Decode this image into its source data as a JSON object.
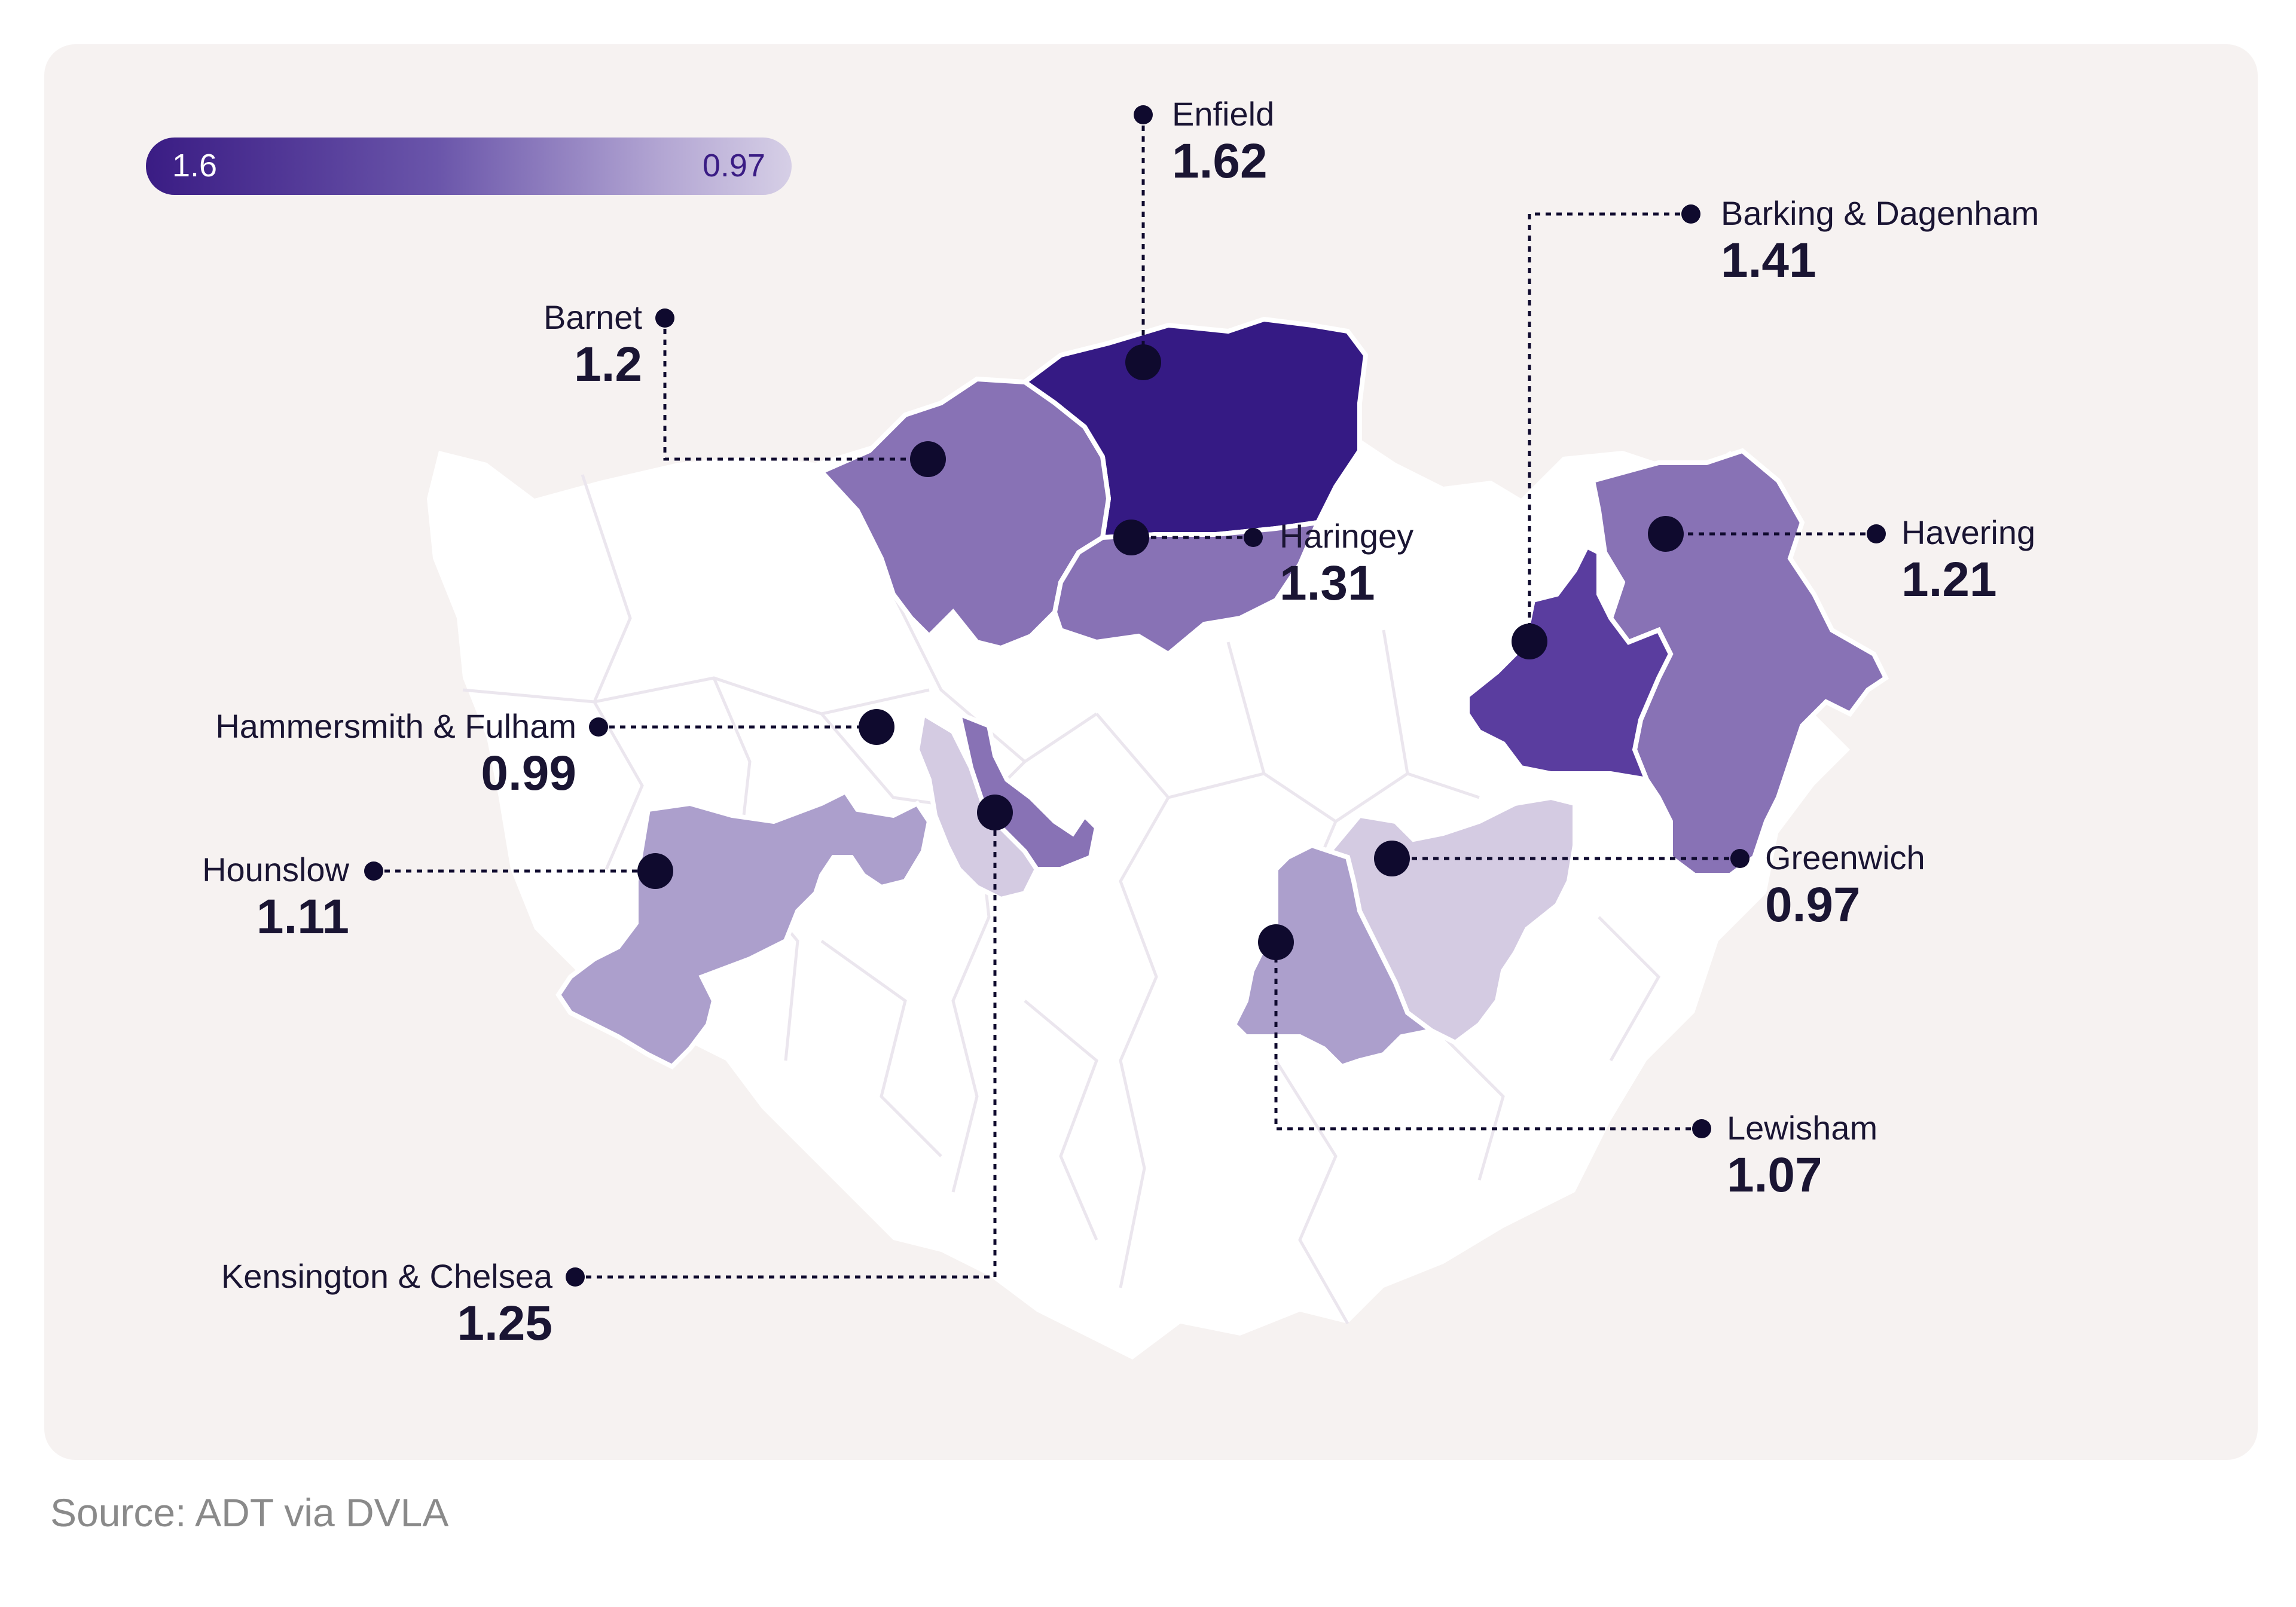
{
  "legend": {
    "max_label": "1.6",
    "min_label": "0.97",
    "colors": [
      "#3a1c84",
      "#d6cfe6"
    ]
  },
  "source": "Source: ADT via DVLA",
  "colors": {
    "card_bg": "#f6f2f1",
    "base_boroughs": "#ffffff",
    "borough_lines": "#e7e2ea",
    "marker": "#0f0a2e"
  },
  "boroughs": [
    {
      "id": "enfield",
      "name": "Enfield",
      "value": "1.62",
      "fill": "#351a84"
    },
    {
      "id": "barking",
      "name": "Barking & Dagenham",
      "value": "1.41",
      "fill": "#5a3d9f"
    },
    {
      "id": "barnet",
      "name": "Barnet",
      "value": "1.2",
      "fill": "#8872b5"
    },
    {
      "id": "haringey",
      "name": "Haringey",
      "value": "1.31",
      "fill": "#8872b5"
    },
    {
      "id": "havering",
      "name": "Havering",
      "value": "1.21",
      "fill": "#8872b5"
    },
    {
      "id": "hammersmith",
      "name": "Hammersmith & Fulham",
      "value": "0.99",
      "fill": "#d4cbe2"
    },
    {
      "id": "hounslow",
      "name": "Hounslow",
      "value": "1.11",
      "fill": "#ac9fcc"
    },
    {
      "id": "greenwich",
      "name": "Greenwich",
      "value": "0.97",
      "fill": "#d4cbe2"
    },
    {
      "id": "lewisham",
      "name": "Lewisham",
      "value": "1.07",
      "fill": "#ac9fcc"
    },
    {
      "id": "kensington",
      "name": "Kensington & Chelsea",
      "value": "1.25",
      "fill": "#8872b5"
    }
  ]
}
